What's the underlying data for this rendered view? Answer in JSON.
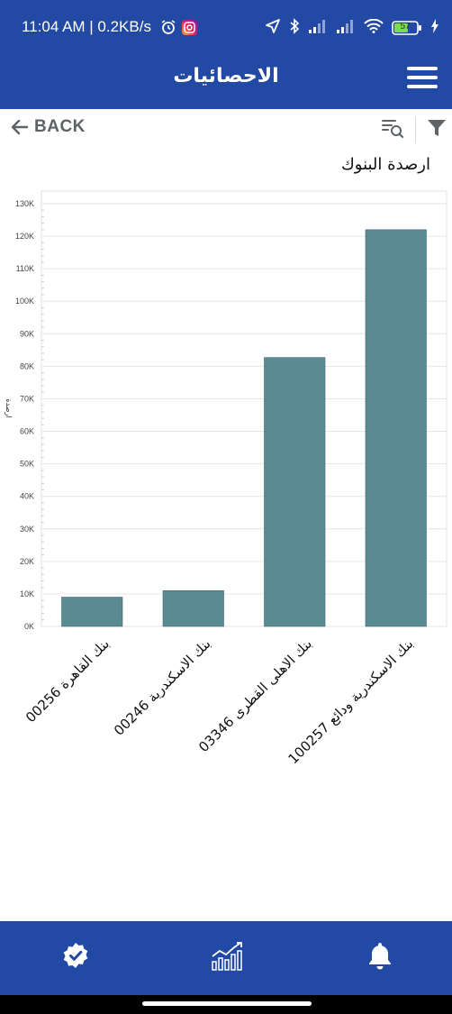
{
  "status_bar": {
    "time": "11:04 AM | 0.2KB/s",
    "battery": "57",
    "icons": [
      "alarm-icon",
      "instagram-icon",
      "location-arrow-icon",
      "bluetooth-icon",
      "signal-icon",
      "signal-icon",
      "wifi-icon",
      "battery-icon",
      "charging-icon"
    ]
  },
  "app_bar": {
    "title": "الاحصائيات",
    "menu_icon": "hamburger-menu-icon"
  },
  "toolbar": {
    "back_label": "BACK",
    "icons": [
      "back-arrow-icon",
      "search-list-icon",
      "filter-icon"
    ]
  },
  "chart_data": {
    "type": "bar",
    "title": "ارصدة البنوك",
    "xlabel": "",
    "ylabel": "ارصدة",
    "ylim": [
      0,
      130000
    ],
    "yticks": [
      0,
      10000,
      20000,
      30000,
      40000,
      50000,
      60000,
      70000,
      80000,
      90000,
      100000,
      110000,
      120000,
      130000
    ],
    "ytick_labels": [
      "0K",
      "10K",
      "20K",
      "30K",
      "40K",
      "50K",
      "60K",
      "70K",
      "80K",
      "90K",
      "100K",
      "110K",
      "120K",
      "130K"
    ],
    "categories": [
      "بنك القاهرة 00256",
      "بنك الاسكندرية 00246",
      "بنك الاهلى القطرى 03346",
      "بنك الاسكندرية ودائع 100257"
    ],
    "values": [
      9000,
      11000,
      82700,
      122000
    ],
    "bar_color": "#5b8a93",
    "grid": true,
    "legend": "none"
  },
  "bottom_nav": {
    "items": [
      {
        "icon": "verified-badge-icon"
      },
      {
        "icon": "statistics-chart-icon"
      },
      {
        "icon": "notification-bell-icon"
      }
    ],
    "background": "#2249a3"
  },
  "colors": {
    "primary": "#2249a3",
    "bar": "#5b8a93",
    "toolbar_icon": "#5f6368"
  }
}
